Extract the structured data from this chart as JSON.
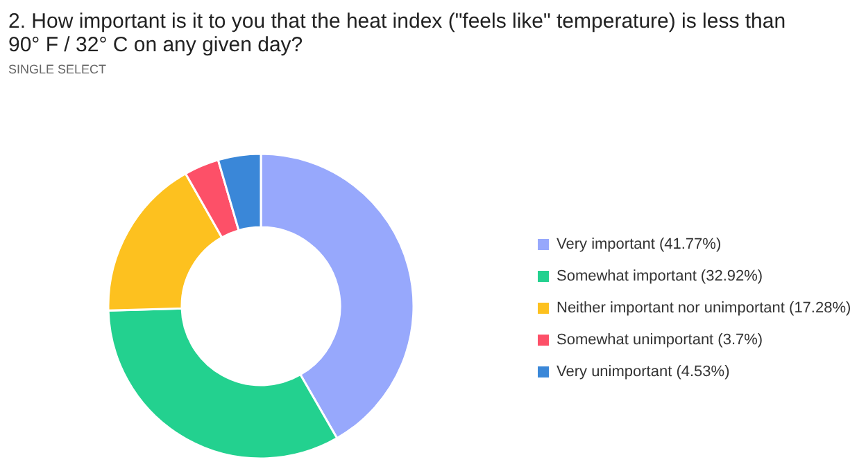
{
  "chart_data": {
    "type": "donut",
    "title": "2. How important is it to you that the heat index (\"feels like\" temperature) is less than 90° F / 32° C on any given day?",
    "subtitle": "SINGLE SELECT",
    "categories": [
      "Very important (41.77%)",
      "Somewhat important (32.92%)",
      "Neither important nor unimportant (17.28%)",
      "Somewhat unimportant (3.7%)",
      "Very unimportant (4.53%)"
    ],
    "values": [
      41.77,
      32.92,
      17.28,
      3.7,
      4.53
    ],
    "colors": [
      "#97a8fc",
      "#23d18f",
      "#fdc11f",
      "#fd5068",
      "#3a87d8"
    ],
    "legend": "right"
  }
}
